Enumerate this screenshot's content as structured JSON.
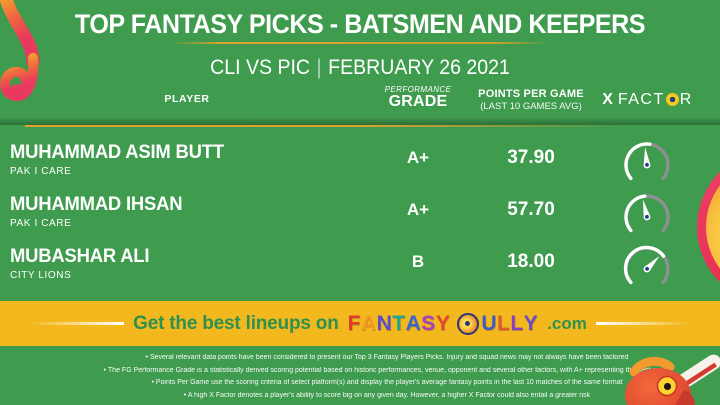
{
  "header": {
    "title": "TOP FANTASY PICKS - BATSMEN AND KEEPERS",
    "match": "CLI VS PIC",
    "separator": "|",
    "date": "FEBRUARY 26 2021"
  },
  "columns": {
    "player": "PLAYER",
    "grade_label_top": "PERFORMANCE",
    "grade_label": "GRADE",
    "points_label": "POINTS PER GAME",
    "points_sublabel": "(LAST 10 GAMES AVG)",
    "xfactor_prefix": "X",
    "xfactor_part1": "FACT",
    "xfactor_part2": "R"
  },
  "players": [
    {
      "name": "MUHAMMAD ASIM BUTT",
      "team": "PAK I CARE",
      "grade": "A+",
      "points": "37.90",
      "gauge": {
        "fill_deg": 8,
        "needle_deg": -6
      }
    },
    {
      "name": "MUHAMMAD IHSAN",
      "team": "PAK I CARE",
      "grade": "A+",
      "points": "57.70",
      "gauge": {
        "fill_deg": -6,
        "needle_deg": -13
      }
    },
    {
      "name": "MUBASHAR ALI",
      "team": "CITY LIONS",
      "grade": "B",
      "points": "18.00",
      "gauge": {
        "fill_deg": 52,
        "needle_deg": 44
      }
    }
  ],
  "banner": {
    "prefix": "Get the best lineups on",
    "brand": [
      {
        "ch": "F",
        "color": "#e03a2c"
      },
      {
        "ch": "A",
        "color": "#f59b1e"
      },
      {
        "ch": "N",
        "color": "#5a4fc8"
      },
      {
        "ch": "T",
        "color": "#1fa98c"
      },
      {
        "ch": "A",
        "color": "#3867cf"
      },
      {
        "ch": "S",
        "color": "#a93ec1"
      },
      {
        "ch": "Y",
        "color": "#e8432f"
      },
      {
        "logo": true
      },
      {
        "ch": "U",
        "color": "#3b5bc7"
      },
      {
        "ch": "L",
        "color": "#e05a2b"
      },
      {
        "ch": "L",
        "color": "#8a3fc0"
      },
      {
        "ch": "Y",
        "color": "#6a4bc9"
      }
    ],
    "suffix": ".com"
  },
  "footnotes": [
    "Several relevant data points have been considered to present our Top 3 Fantasy Players Picks. Injury and squad news may not always have been factored",
    "The FG Performance Grade is a statistically derived scoring potential based on historic performances, venue, opponent and several other factors, with A+ representing the best grade",
    "Points Per Game use the scoring criteria of select platform(s) and display the player's average fantasy points in the last 10 matches of the same format",
    "A high X Factor denotes a player's ability to score big on any given day. However, a higher X Factor could also entail a greater risk"
  ],
  "chart_data": {
    "type": "table",
    "title": "TOP FANTASY PICKS - BATSMEN AND KEEPERS",
    "subtitle": "CLI VS PIC | FEBRUARY 26 2021",
    "columns": [
      "PLAYER",
      "PERFORMANCE GRADE",
      "POINTS PER GAME (LAST 10 GAMES AVG)",
      "X FACTOR"
    ],
    "rows": [
      [
        "MUHAMMAD ASIM BUTT (PAK I CARE)",
        "A+",
        37.9,
        "gauge needle near top, slightly left (~52%)"
      ],
      [
        "MUHAMMAD IHSAN (PAK I CARE)",
        "A+",
        57.7,
        "gauge needle near top, slightly left (~48%)"
      ],
      [
        "MUBASHAR ALI (CITY LIONS)",
        "B",
        18.0,
        "gauge needle up-right (~75%)"
      ]
    ]
  },
  "colors": {
    "background": "#3f9b4e",
    "banner_band": "#f3b81d",
    "accent_gold": "#dfa22d",
    "brand_green": "#2e9150",
    "gauge_track": "#8d9092",
    "gauge_pivot_dot": "#1d3d8f",
    "ribbon_orange": "#f7b32b",
    "ribbon_pink": "#e9395e",
    "circle_ring_pink": "#e8355b"
  }
}
